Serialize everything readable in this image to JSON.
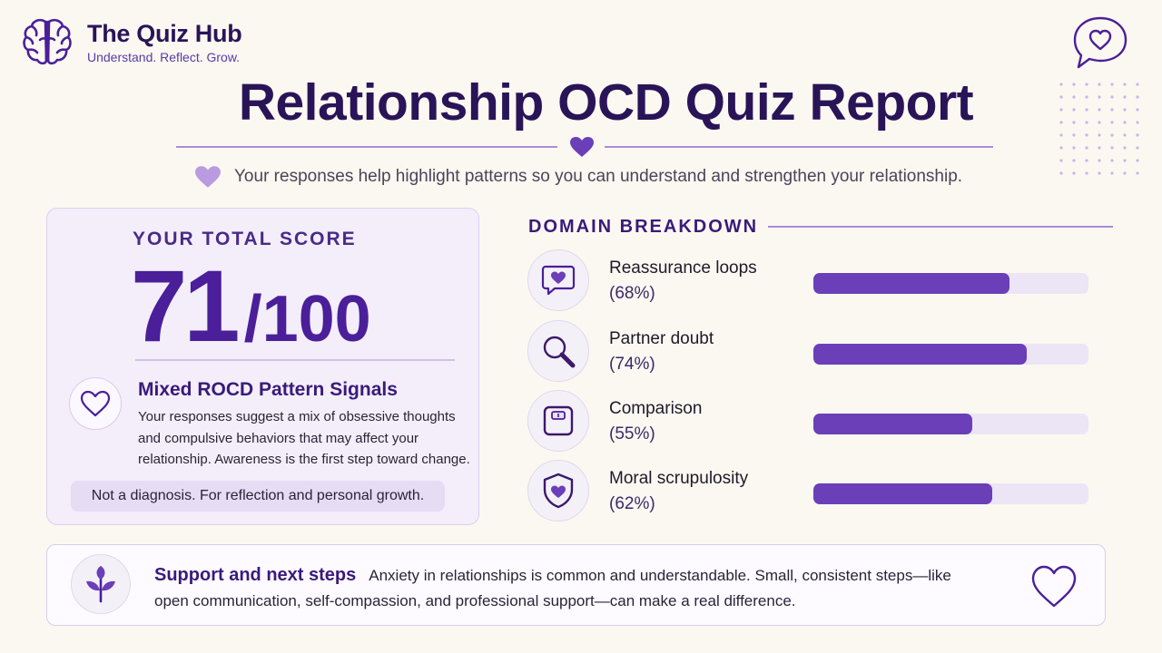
{
  "brand": {
    "name": "The Quiz Hub",
    "tagline": "Understand. Reflect. Grow.",
    "logo_icon": "brain-icon"
  },
  "header": {
    "title": "Relationship OCD Quiz Report",
    "subtitle": "Your responses help highlight patterns so you can understand and strengthen your relationship."
  },
  "score": {
    "label": "YOUR TOTAL SCORE",
    "value": "71",
    "out_of": "/100",
    "pattern_title": "Mixed ROCD Pattern Signals",
    "pattern_description": "Your responses suggest a mix of obsessive thoughts and compulsive behaviors that may affect your relationship. Awareness is the first step toward change.",
    "disclaimer": "Not a diagnosis. For reflection and personal growth."
  },
  "breakdown": {
    "title": "DOMAIN BREAKDOWN",
    "domains": [
      {
        "name": "Reassurance loops",
        "percent_label": "(68%)",
        "percent": 68,
        "icon": "chat-heart-icon"
      },
      {
        "name": "Partner doubt",
        "percent_label": "(74%)",
        "percent": 74,
        "icon": "magnifier-icon"
      },
      {
        "name": "Comparison",
        "percent_label": "(55%)",
        "percent": 55,
        "icon": "scale-icon"
      },
      {
        "name": "Moral scrupulosity",
        "percent_label": "(62%)",
        "percent": 62,
        "icon": "shield-heart-icon"
      }
    ]
  },
  "support": {
    "title": "Support and next steps",
    "text": "Anxiety in relationships is common and understandable. Small, consistent steps—like open communication, self-compassion, and professional support—can make a real difference."
  },
  "colors": {
    "accent": "#4a1f99",
    "bar_fill": "#6a3fb8",
    "bar_track": "#ece5f5",
    "background": "#fbf8f1"
  }
}
